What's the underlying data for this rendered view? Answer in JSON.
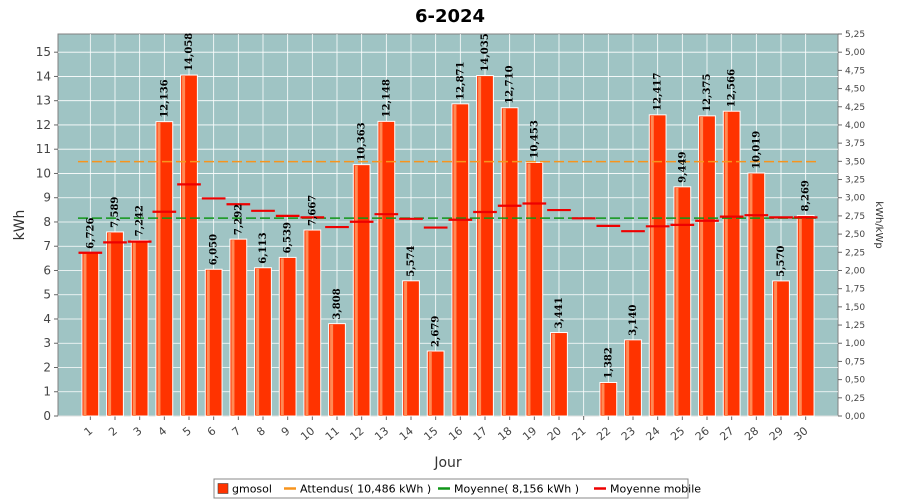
{
  "chart_data": {
    "type": "bar",
    "title": "6-2024",
    "xlabel": "Jour",
    "ylabel": "kWh",
    "ylabel_right": "kWh/kWp",
    "ylim": [
      0,
      15.75
    ],
    "ylim_right": [
      0,
      5.25
    ],
    "y_ticks": [
      "0",
      "1",
      "2",
      "3",
      "4",
      "5",
      "6",
      "7",
      "8",
      "9",
      "10",
      "11",
      "12",
      "13",
      "14",
      "15"
    ],
    "y_ticks_right": [
      "0,00",
      "0,25",
      "0,50",
      "0,75",
      "1,00",
      "1,25",
      "1,50",
      "1,75",
      "2,00",
      "2,25",
      "2,50",
      "2,75",
      "3,00",
      "3,25",
      "3,50",
      "3,75",
      "4,00",
      "4,25",
      "4,50",
      "4,75",
      "5,00",
      "5,25"
    ],
    "categories": [
      "1",
      "2",
      "3",
      "4",
      "5",
      "6",
      "7",
      "8",
      "9",
      "10",
      "11",
      "12",
      "13",
      "14",
      "15",
      "16",
      "17",
      "18",
      "19",
      "20",
      "21",
      "22",
      "23",
      "24",
      "25",
      "26",
      "27",
      "28",
      "29",
      "30"
    ],
    "series": [
      {
        "name": "gmosol",
        "values": [
          6.726,
          7.589,
          7.242,
          12.136,
          14.058,
          6.05,
          7.292,
          6.113,
          6.539,
          7.667,
          3.808,
          10.363,
          12.148,
          5.574,
          2.679,
          12.871,
          14.035,
          12.71,
          10.453,
          3.441,
          null,
          1.382,
          3.14,
          12.417,
          9.449,
          12.375,
          12.566,
          10.019,
          5.57,
          8.269
        ],
        "labels": [
          "6,726",
          "7,589",
          "7,242",
          "12,136",
          "14,058",
          "6,050",
          "7,292",
          "6,113",
          "6,539",
          "7,667",
          "3,808",
          "10,363",
          "12,148",
          "5,574",
          "2,679",
          "12,871",
          "14,035",
          "12,710",
          "10,453",
          "3,441",
          "",
          "1,382",
          "3,140",
          "12,417",
          "9,449",
          "12,375",
          "12,566",
          "10,019",
          "5,570",
          "8,269"
        ]
      },
      {
        "name": "Moyenne mobile",
        "values": [
          6.73,
          7.16,
          7.19,
          8.42,
          9.55,
          8.97,
          8.73,
          8.46,
          8.25,
          8.19,
          7.79,
          8.01,
          8.32,
          8.13,
          7.77,
          8.09,
          8.41,
          8.67,
          8.76,
          8.49,
          8.15,
          7.84,
          7.62,
          7.82,
          7.88,
          8.05,
          8.22,
          8.28,
          8.19,
          8.19
        ]
      }
    ],
    "reference_lines": [
      {
        "name": "Attendus( 10,486 kWh )",
        "value": 10.486,
        "color": "#f7941d"
      },
      {
        "name": "Moyenne( 8,156 kWh )",
        "value": 8.156,
        "color": "#109618"
      }
    ],
    "legend": {
      "position": "bottom",
      "items": [
        {
          "label": "gmosol",
          "color": "#ff3300",
          "kind": "box"
        },
        {
          "label": "Attendus( 10,486 kWh )",
          "color": "#f7941d",
          "kind": "line"
        },
        {
          "label": "Moyenne( 8,156 kWh )",
          "color": "#109618",
          "kind": "line"
        },
        {
          "label": "Moyenne mobile",
          "color": "#ee0000",
          "kind": "line"
        }
      ]
    },
    "colors": {
      "plot_background": "#9fc4c4",
      "bar": "#ff3300",
      "bar_highlight": "#ff8a55",
      "grid": "#ffffff"
    },
    "grid": true
  }
}
